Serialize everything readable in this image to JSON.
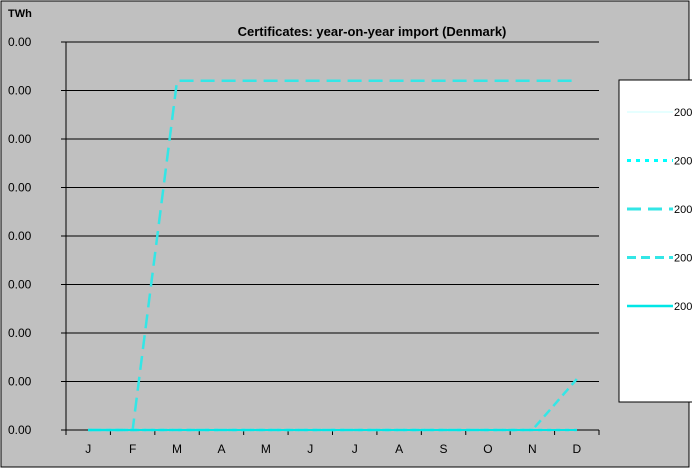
{
  "chart_data": {
    "type": "line",
    "title": "Certificates: year-on-year import (Denmark)",
    "ylabel": "TWh",
    "xlabel": "",
    "categories": [
      "J",
      "F",
      "M",
      "A",
      "M",
      "J",
      "J",
      "A",
      "S",
      "O",
      "N",
      "D"
    ],
    "yticks": [
      "0.00",
      "0.00",
      "0.00",
      "0.00",
      "0.00",
      "0.00",
      "0.00",
      "0.00",
      "0.00"
    ],
    "ylim": [
      0,
      8
    ],
    "grid": "horizontal",
    "legend_position": "right",
    "series": [
      {
        "name": "200",
        "style": "solid-thin",
        "color": "#e6ffff",
        "values": [
          0,
          0,
          0,
          0,
          0,
          0,
          0,
          0,
          0,
          0,
          0,
          0
        ]
      },
      {
        "name": "200",
        "style": "dotted",
        "color": "#00ffff",
        "values": [
          0,
          0,
          0,
          0,
          0,
          0,
          0,
          0,
          0,
          0,
          0,
          0
        ]
      },
      {
        "name": "200",
        "style": "long-dash",
        "color": "#33e6e6",
        "values": [
          0,
          0,
          7.2,
          7.2,
          7.2,
          7.2,
          7.2,
          7.2,
          7.2,
          7.2,
          7.2,
          7.2
        ]
      },
      {
        "name": "200",
        "style": "dash",
        "color": "#33e6e6",
        "values": [
          0,
          0,
          0,
          0,
          0,
          0,
          0,
          0,
          0,
          0,
          0,
          1.05
        ]
      },
      {
        "name": "200",
        "style": "solid",
        "color": "#00e6e6",
        "values": [
          0,
          0,
          0,
          0,
          0,
          0,
          0,
          0,
          0,
          0,
          0,
          0
        ]
      }
    ],
    "colors": {
      "plot_background": "#c0c0c0",
      "gridline": "#000000",
      "outer_background": "#ffffff"
    }
  }
}
